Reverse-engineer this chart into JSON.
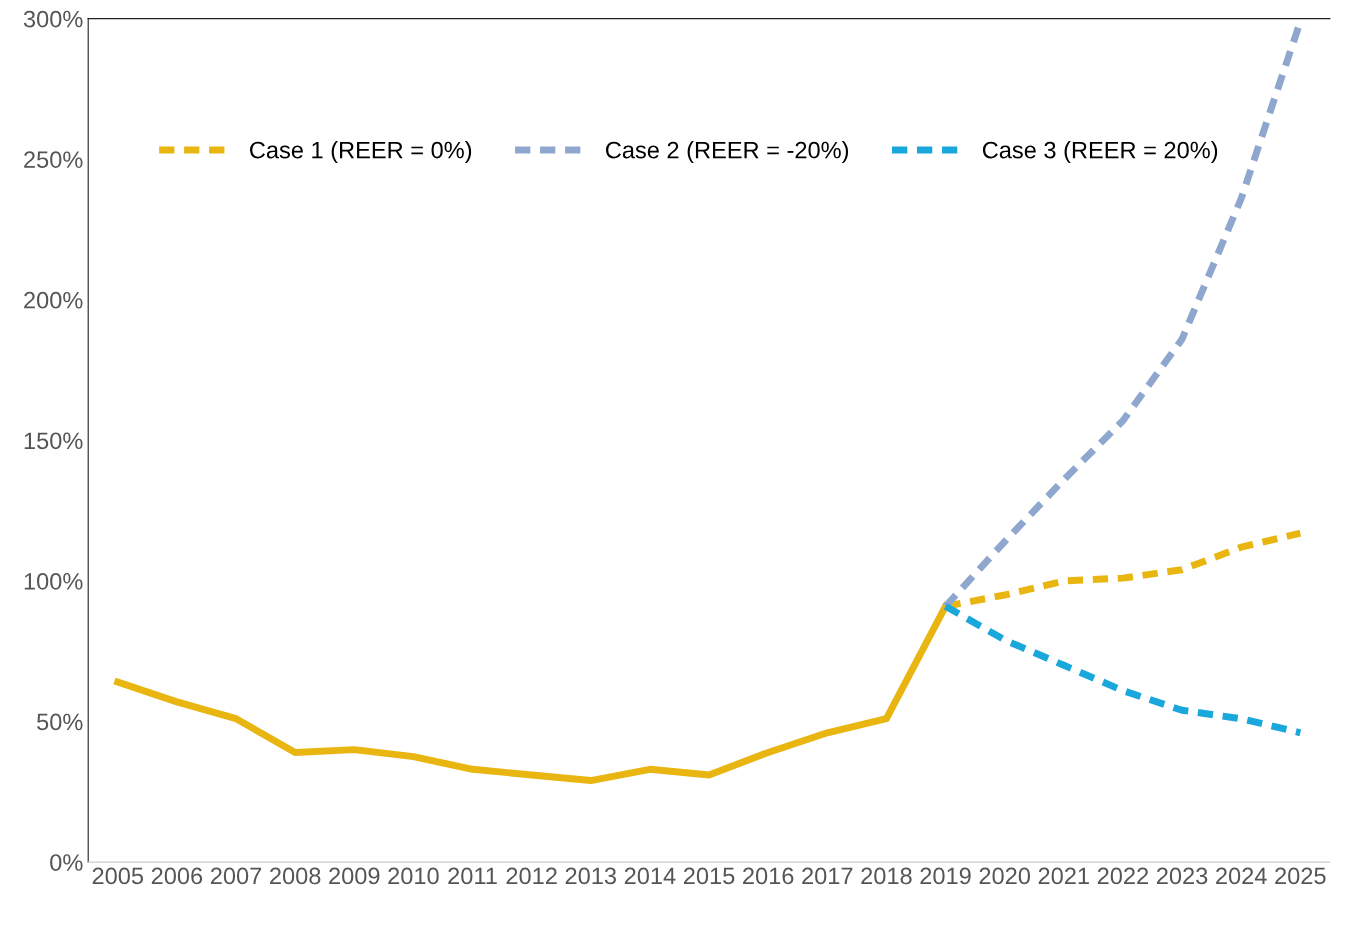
{
  "chart_data": {
    "type": "line",
    "categories": [
      "2005",
      "2006",
      "2007",
      "2008",
      "2009",
      "2010",
      "2011",
      "2012",
      "2013",
      "2014",
      "2015",
      "2016",
      "2017",
      "2018",
      "2019",
      "2020",
      "2021",
      "2022",
      "2023",
      "2024",
      "2025"
    ],
    "series": [
      {
        "color": "#e8b511",
        "line_style": "solid",
        "values": [
          64,
          57,
          51,
          39,
          40,
          37.5,
          33,
          31,
          29,
          33,
          31,
          39,
          46,
          51,
          91,
          null,
          null,
          null,
          null,
          null,
          null
        ]
      },
      {
        "name": "Case 1 (REER = 0%)",
        "color": "#e8b511",
        "line_style": "dashed",
        "values": [
          null,
          null,
          null,
          null,
          null,
          null,
          null,
          null,
          null,
          null,
          null,
          null,
          null,
          null,
          91,
          95,
          100,
          101,
          104,
          112,
          117
        ]
      },
      {
        "name": "Case 2 (REER = -20%)",
        "color": "#8fa7cf",
        "line_style": "dashed",
        "values": [
          null,
          null,
          null,
          null,
          null,
          null,
          null,
          null,
          null,
          null,
          null,
          null,
          null,
          null,
          91,
          114,
          136,
          157,
          186,
          236,
          299
        ]
      },
      {
        "name": "Case 3 (REER = 20%)",
        "color": "#1aa7dc",
        "line_style": "dashed",
        "values": [
          null,
          null,
          null,
          null,
          null,
          null,
          null,
          null,
          null,
          null,
          null,
          null,
          null,
          null,
          91,
          79,
          70,
          61,
          54,
          51,
          46
        ]
      }
    ],
    "ylim": [
      0,
      300
    ],
    "yticks": [
      {
        "value": 0,
        "label": "0%"
      },
      {
        "value": 50,
        "label": "50%"
      },
      {
        "value": 100,
        "label": "100%"
      },
      {
        "value": 150,
        "label": "150%"
      },
      {
        "value": 200,
        "label": "200%"
      },
      {
        "value": 250,
        "label": "250%"
      },
      {
        "value": 300,
        "label": "300%"
      }
    ],
    "grid": false,
    "legend": "top left",
    "marker": "none"
  }
}
